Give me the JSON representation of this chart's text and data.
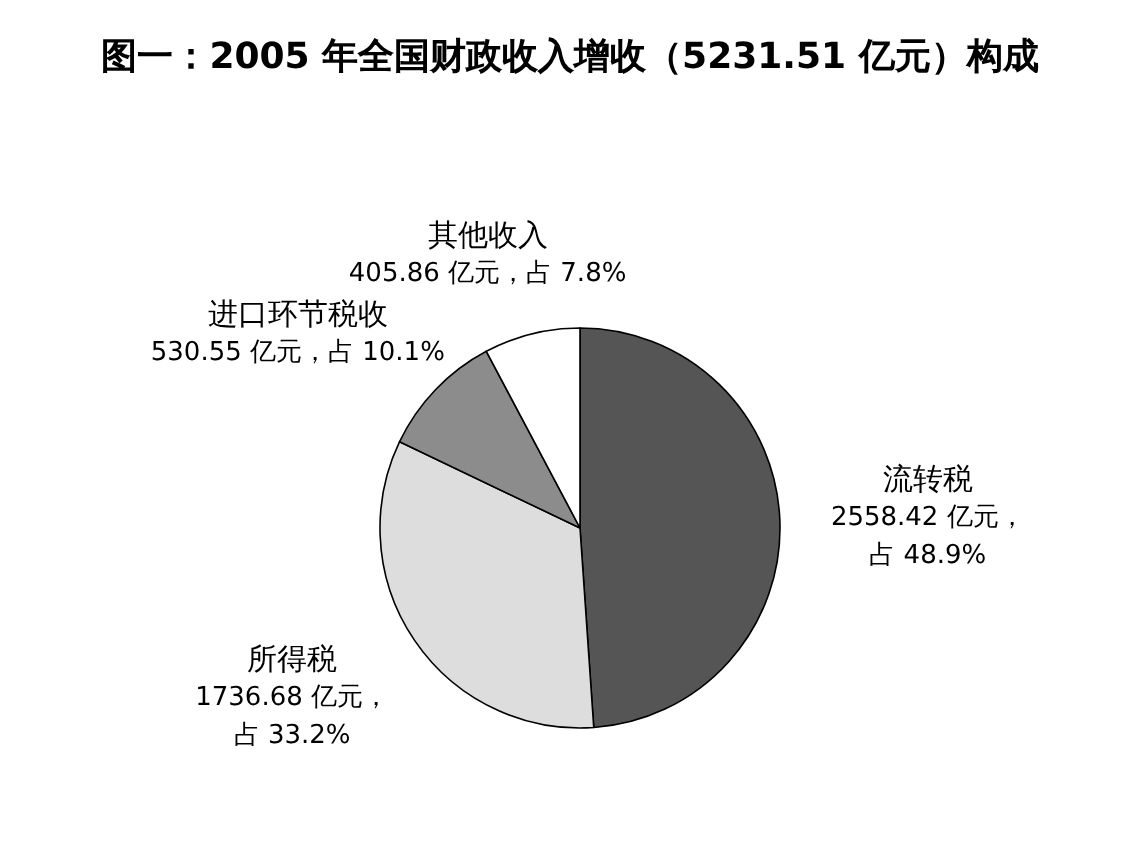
{
  "chart_data": {
    "type": "pie",
    "title": "图一：2005 年全国财政收入增收（5231.51 亿元）构成",
    "categories": [
      "流转税",
      "所得税",
      "进口环节税收",
      "其他收入"
    ],
    "values": [
      2558.42,
      1736.68,
      530.55,
      405.86
    ],
    "colors": [
      "#555555",
      "#dddddd",
      "#8c8c8c",
      "#ffffff"
    ],
    "value_labels": [
      "2558.42 亿元，占 48.9%",
      "1736.68 亿元，占 33.2%",
      "530.55 亿元，占 10.1%",
      "405.86 亿元，占 7.8%"
    ]
  }
}
